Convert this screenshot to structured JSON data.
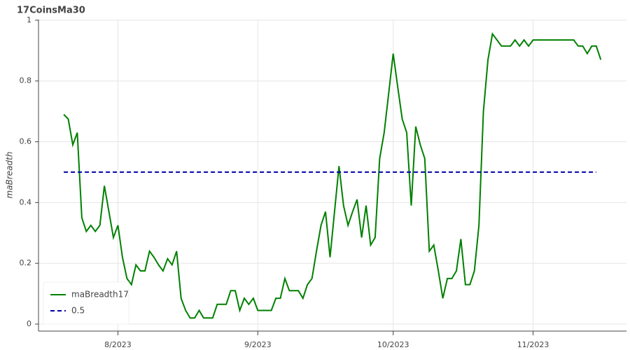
{
  "chart_data": {
    "type": "line",
    "title": "17CoinsMa30",
    "y_label": "maBreadth",
    "series": [
      {
        "name": "maBreadth17",
        "color": "#008000",
        "line_dash": "solid",
        "values": [
          0.69,
          0.675,
          0.59,
          0.63,
          0.35,
          0.305,
          0.325,
          0.305,
          0.325,
          0.455,
          0.37,
          0.285,
          0.325,
          0.22,
          0.15,
          0.13,
          0.195,
          0.175,
          0.175,
          0.24,
          0.22,
          0.195,
          0.175,
          0.215,
          0.195,
          0.24,
          0.085,
          0.045,
          0.02,
          0.02,
          0.045,
          0.02,
          0.02,
          0.02,
          0.065,
          0.065,
          0.065,
          0.11,
          0.11,
          0.045,
          0.085,
          0.065,
          0.085,
          0.045,
          0.045,
          0.045,
          0.045,
          0.085,
          0.085,
          0.15,
          0.11,
          0.11,
          0.11,
          0.085,
          0.13,
          0.15,
          0.24,
          0.325,
          0.37,
          0.22,
          0.37,
          0.52,
          0.39,
          0.325,
          0.37,
          0.41,
          0.285,
          0.39,
          0.26,
          0.285,
          0.545,
          0.63,
          0.76,
          0.89,
          0.78,
          0.675,
          0.63,
          0.39,
          0.65,
          0.59,
          0.545,
          0.24,
          0.26,
          0.175,
          0.085,
          0.15,
          0.15,
          0.175,
          0.28,
          0.13,
          0.13,
          0.175,
          0.325,
          0.7,
          0.87,
          0.955,
          0.935,
          0.915,
          0.915,
          0.915,
          0.935,
          0.915,
          0.935,
          0.915,
          0.935,
          0.935,
          0.935,
          0.935,
          0.935,
          0.935,
          0.935,
          0.935,
          0.935,
          0.935,
          0.915,
          0.915,
          0.89,
          0.915,
          0.915,
          0.87
        ]
      },
      {
        "name": "0.5",
        "color": "#0000aa",
        "line_dash": "dashed",
        "values": [
          0.5,
          0.5,
          0.5,
          0.5,
          0.5,
          0.5,
          0.5,
          0.5,
          0.5,
          0.5,
          0.5,
          0.5,
          0.5,
          0.5,
          0.5,
          0.5,
          0.5,
          0.5,
          0.5,
          0.5,
          0.5,
          0.5,
          0.5,
          0.5,
          0.5,
          0.5,
          0.5,
          0.5,
          0.5,
          0.5,
          0.5,
          0.5,
          0.5,
          0.5,
          0.5,
          0.5,
          0.5,
          0.5,
          0.5,
          0.5,
          0.5,
          0.5,
          0.5,
          0.5,
          0.5,
          0.5,
          0.5,
          0.5,
          0.5,
          0.5,
          0.5,
          0.5,
          0.5,
          0.5,
          0.5,
          0.5,
          0.5,
          0.5,
          0.5,
          0.5,
          0.5,
          0.5,
          0.5,
          0.5,
          0.5,
          0.5,
          0.5,
          0.5,
          0.5,
          0.5,
          0.5,
          0.5,
          0.5,
          0.5,
          0.5,
          0.5,
          0.5,
          0.5,
          0.5,
          0.5,
          0.5,
          0.5,
          0.5,
          0.5,
          0.5,
          0.5,
          0.5,
          0.5,
          0.5,
          0.5,
          0.5,
          0.5,
          0.5,
          0.5,
          0.5,
          0.5,
          0.5,
          0.5,
          0.5,
          0.5,
          0.5,
          0.5,
          0.5,
          0.5,
          0.5,
          0.5,
          0.5,
          0.5,
          0.5,
          0.5,
          0.5,
          0.5,
          0.5,
          0.5,
          0.5,
          0.5,
          0.5,
          0.5,
          0.5
        ]
      }
    ],
    "xlim": [
      -5.6,
      124.7
    ],
    "xticks": [
      {
        "value": 12,
        "label": "8/2023"
      },
      {
        "value": 43,
        "label": "9/2023"
      },
      {
        "value": 73,
        "label": "10/2023"
      },
      {
        "value": 104,
        "label": "11/2023"
      }
    ],
    "ylim": [
      -0.023,
      1.002
    ],
    "yticks": [
      0,
      0.2,
      0.4,
      0.6,
      0.8,
      1
    ],
    "grid": true,
    "legend": "bottom-left"
  }
}
